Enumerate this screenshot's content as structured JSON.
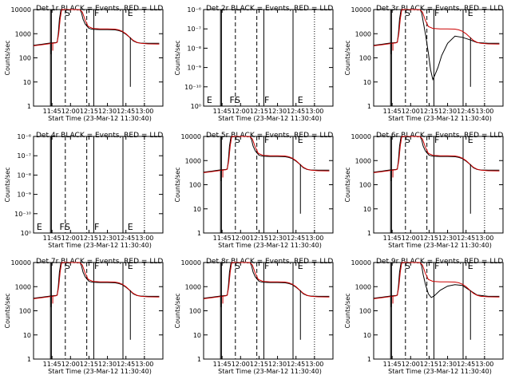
{
  "chart_data": {
    "type": "line",
    "xlabel": "Start Time (23-Mar-12 11:30:40)",
    "ylabel": "Counts/sec",
    "xlim": [
      11.5,
      13.25
    ],
    "x_ticks": [
      11.75,
      12.0,
      12.25,
      12.5,
      12.75,
      13.0
    ],
    "x_tick_labels": [
      "11:45",
      "12:00",
      "12:15",
      "12:30",
      "12:45",
      "13:00"
    ],
    "ylim": [
      1,
      10000
    ],
    "y_ticks": [
      1,
      10,
      100,
      1000,
      10000
    ],
    "y_tick_labels": [
      "1",
      "10",
      "100",
      "1000",
      "10000"
    ],
    "zero_ylim": [
      1e-06,
      1e-10
    ],
    "zero_y_tick_labels": [
      "10⁻⁶",
      "10⁻⁷",
      "10⁻⁸",
      "10⁻⁹",
      "10⁻¹⁰",
      "10⁰"
    ],
    "vlines": {
      "solid": [
        11.729,
        11.742,
        12.315,
        12.71
      ],
      "dashed": [
        11.93,
        12.22
      ],
      "dotted": [
        13.0
      ]
    },
    "letters": [
      {
        "text": "E",
        "x": 11.52
      },
      {
        "text": "F",
        "x": 11.83
      },
      {
        "text": "S",
        "x": 11.9
      },
      {
        "text": "F",
        "x": 12.3
      },
      {
        "text": "E",
        "x": 12.75
      }
    ],
    "series_names": {
      "events": "Events",
      "lld": "LLD"
    },
    "series_colors": {
      "events": "#000000",
      "lld": "#cc0000"
    },
    "panels": [
      {
        "title": "Det 1r  BLACK = Events, RED = LLD",
        "mode": "normal",
        "dip": null
      },
      {
        "title": "Det 2r  BLACK = Events, RED = LLD",
        "mode": "zero",
        "dip": null
      },
      {
        "title": "Det 3r  BLACK = Events, RED = LLD",
        "mode": "normal",
        "dip": "deep"
      },
      {
        "title": "Det 4r  BLACK = Events, RED = LLD",
        "mode": "zero",
        "dip": null
      },
      {
        "title": "Det 5r  BLACK = Events, RED = LLD",
        "mode": "normal",
        "dip": null
      },
      {
        "title": "Det 6r  BLACK = Events, RED = LLD",
        "mode": "normal",
        "dip": null
      },
      {
        "title": "Det 7r  BLACK = Events, RED = LLD",
        "mode": "normal",
        "dip": null
      },
      {
        "title": "Det 8r  BLACK = Events, RED = LLD",
        "mode": "normal",
        "dip": null
      },
      {
        "title": "Det 9r  BLACK = Events, RED = LLD",
        "mode": "normal",
        "dip": "shallow"
      }
    ]
  }
}
